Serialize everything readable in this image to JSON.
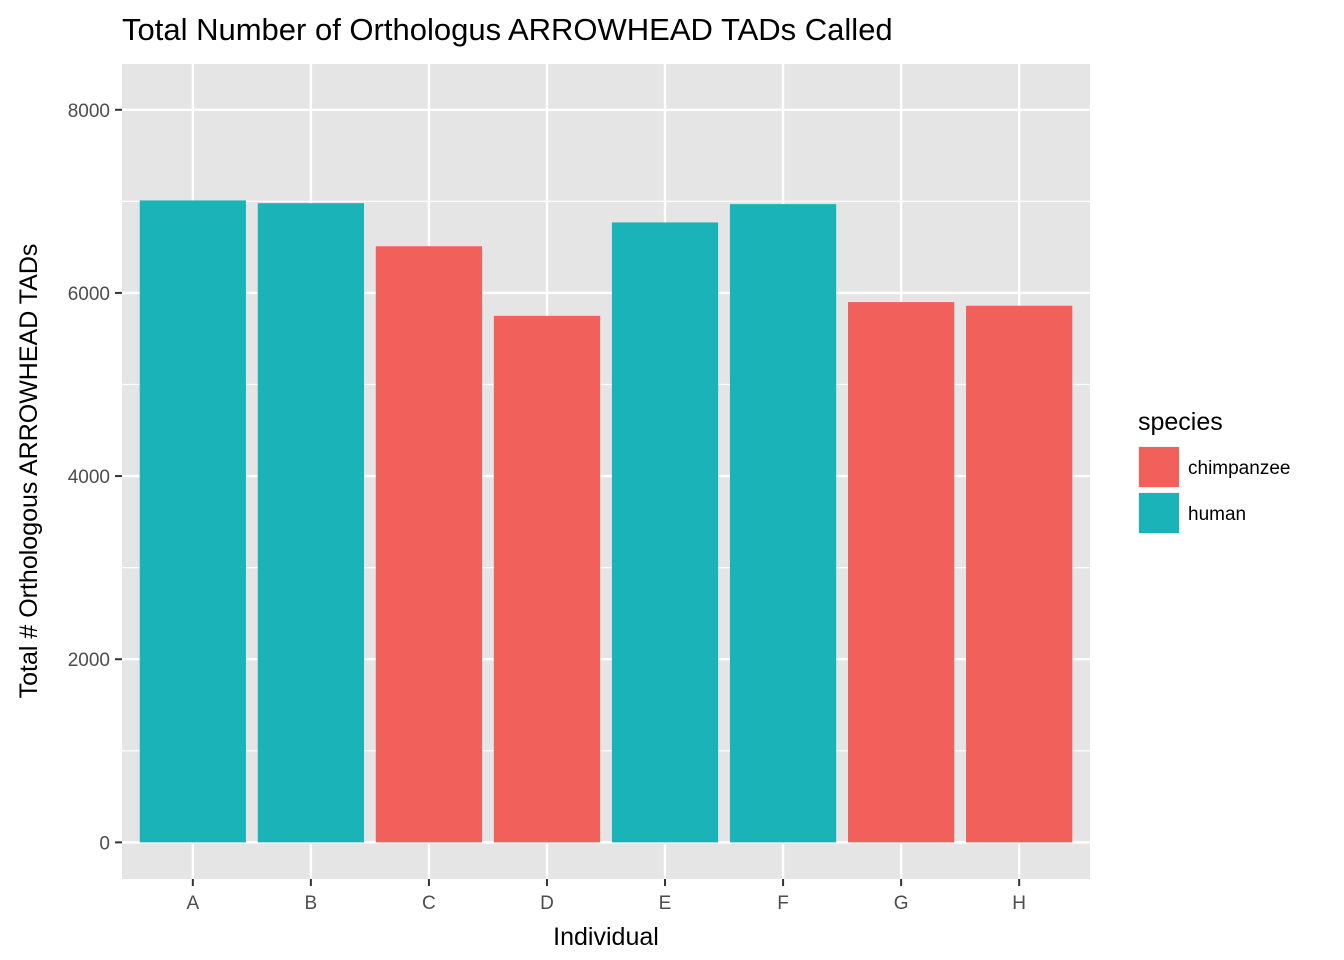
{
  "chart_data": {
    "type": "bar",
    "title": "Total Number of Orthologus ARROWHEAD TADs Called",
    "xlabel": "Individual",
    "ylabel": "Total # Orthologous ARROWHEAD TADs",
    "categories": [
      "A",
      "B",
      "C",
      "D",
      "E",
      "F",
      "G",
      "H"
    ],
    "values": [
      7010,
      6980,
      6510,
      5750,
      6770,
      6970,
      5900,
      5860
    ],
    "groups": [
      "human",
      "human",
      "chimpanzee",
      "chimpanzee",
      "human",
      "human",
      "chimpanzee",
      "chimpanzee"
    ],
    "ylim": [
      -400,
      8500
    ],
    "yticks": [
      0,
      2000,
      4000,
      6000,
      8000
    ],
    "grid": true,
    "legend": {
      "title": "species",
      "position": "right",
      "entries": [
        {
          "label": "chimpanzee",
          "color": "#F8766D"
        },
        {
          "label": "human",
          "color": "#00BFC4"
        }
      ]
    },
    "colors": {
      "chimpanzee": "#F2605C",
      "human": "#1AB3B8",
      "panel": "#E5E5E5",
      "grid": "#FFFFFF"
    }
  }
}
